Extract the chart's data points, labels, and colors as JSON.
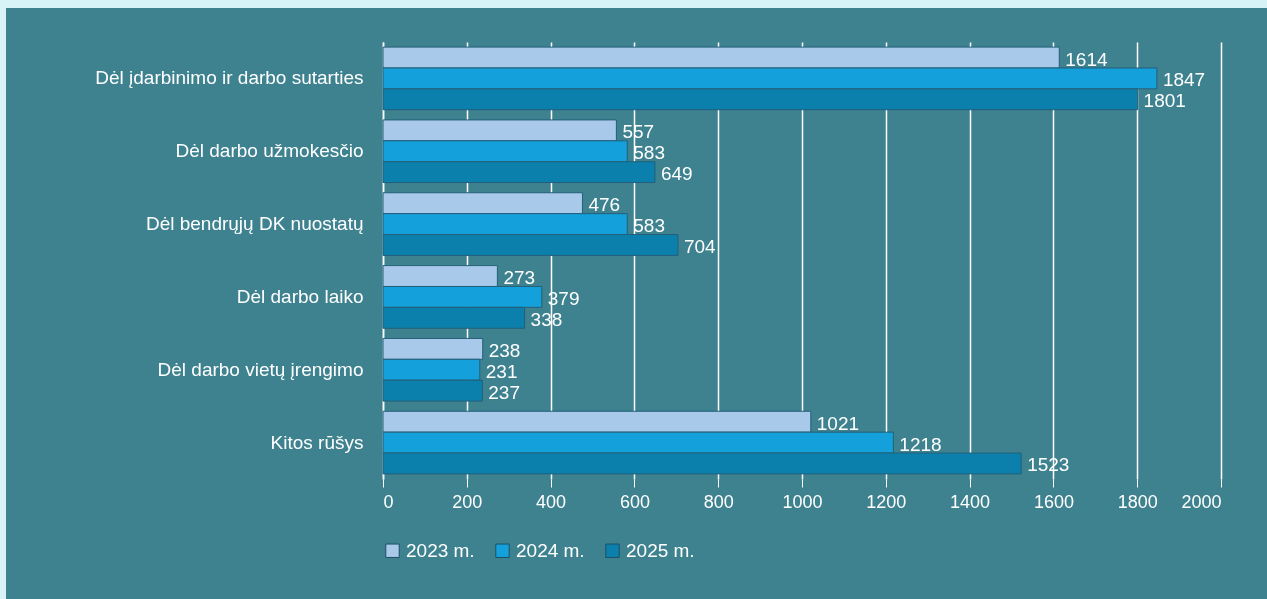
{
  "chart_data": {
    "type": "bar",
    "orientation": "horizontal",
    "categories": [
      "Dėl įdarbinimo ir darbo sutarties",
      "Dėl darbo užmokesčio",
      "Dėl bendrųjų DK nuostatų",
      "Dėl darbo laiko",
      "Dėl darbo vietų įrengimo",
      "Kitos rūšys"
    ],
    "series": [
      {
        "name": "2023 m.",
        "color": "#a8c9ea",
        "values": [
          1614,
          557,
          476,
          273,
          238,
          1021
        ]
      },
      {
        "name": "2024 m.",
        "color": "#14a0da",
        "values": [
          1847,
          583,
          583,
          379,
          231,
          1218
        ]
      },
      {
        "name": "2025 m.",
        "color": "#0b80ad",
        "values": [
          1801,
          649,
          704,
          338,
          237,
          1523
        ]
      }
    ],
    "xlim": [
      0,
      2000
    ],
    "xticks": [
      0,
      200,
      400,
      600,
      800,
      1000,
      1200,
      1400,
      1600,
      1800,
      2000
    ],
    "grid": "x",
    "legend": "bottom",
    "data_labels": true
  }
}
